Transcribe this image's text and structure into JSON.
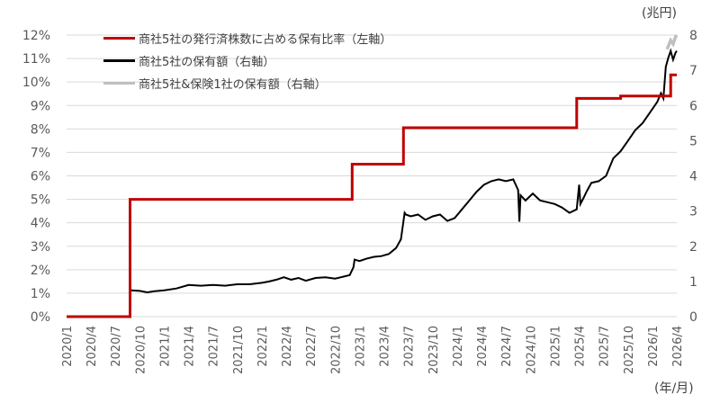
{
  "chart_data": {
    "type": "line",
    "title": "",
    "xlabel": "(年/月)",
    "ylabel_left": "",
    "ylabel_right": "(兆円)",
    "ylim_left": [
      0,
      12
    ],
    "ylim_right": [
      0,
      8
    ],
    "left_ticks": [
      "0%",
      "1%",
      "2%",
      "3%",
      "4%",
      "5%",
      "6%",
      "7%",
      "8%",
      "9%",
      "10%",
      "11%",
      "12%"
    ],
    "right_ticks": [
      "0",
      "1",
      "2",
      "3",
      "4",
      "5",
      "6",
      "7",
      "8"
    ],
    "x_ticks": [
      "2020/1",
      "2020/4",
      "2020/7",
      "2020/10",
      "2021/1",
      "2021/4",
      "2021/7",
      "2021/10",
      "2022/1",
      "2022/4",
      "2022/7",
      "2022/10",
      "2023/1",
      "2023/4",
      "2023/7",
      "2023/10",
      "2024/1",
      "2024/4",
      "2024/7",
      "2024/10",
      "2025/1",
      "2025/4",
      "2025/7",
      "2025/10",
      "2026/1",
      "2026/4"
    ],
    "grid": true,
    "legend_position": "top-left",
    "series": [
      {
        "name": "商社5社の発行済株数に占める保有比率（左軸）",
        "axis": "left",
        "color": "#C00000",
        "style": "step",
        "x_quarter_index": [
          0,
          2.6,
          2.6,
          11.7,
          11.7,
          13.8,
          13.8,
          20.9,
          20.9,
          22.7,
          22.7,
          24.75,
          24.75,
          25.0
        ],
        "values": [
          0,
          0,
          5.0,
          5.0,
          6.5,
          6.5,
          8.05,
          8.05,
          9.3,
          9.3,
          9.4,
          9.4,
          10.3,
          10.3
        ]
      },
      {
        "name": "商社5社の保有額（右軸）",
        "axis": "right",
        "color": "#000000",
        "style": "line",
        "x_quarter_index": [
          0,
          2.6,
          2.62,
          3.0,
          3.3,
          3.6,
          4.0,
          4.5,
          5.0,
          5.5,
          6.0,
          6.5,
          7.0,
          7.5,
          8.0,
          8.3,
          8.6,
          8.9,
          9.2,
          9.5,
          9.8,
          10.2,
          10.6,
          11.0,
          11.3,
          11.6,
          11.75,
          11.8,
          12.0,
          12.3,
          12.6,
          12.9,
          13.2,
          13.5,
          13.7,
          13.85,
          13.9,
          14.1,
          14.4,
          14.7,
          15.0,
          15.3,
          15.6,
          15.9,
          16.2,
          16.5,
          16.8,
          17.1,
          17.4,
          17.7,
          18.0,
          18.3,
          18.5,
          18.55,
          18.6,
          18.8,
          19.1,
          19.4,
          19.7,
          20.0,
          20.3,
          20.6,
          20.9,
          21.0,
          21.05,
          21.2,
          21.3,
          21.5,
          21.8,
          22.1,
          22.4,
          22.7,
          23.0,
          23.3,
          23.6,
          23.9,
          24.2,
          24.35,
          24.45,
          24.55,
          24.65,
          24.75,
          24.85,
          24.95,
          25.0
        ],
        "values": [
          0,
          0,
          0.75,
          0.73,
          0.69,
          0.72,
          0.75,
          0.8,
          0.9,
          0.88,
          0.9,
          0.88,
          0.92,
          0.92,
          0.96,
          1.0,
          1.05,
          1.12,
          1.05,
          1.1,
          1.02,
          1.1,
          1.12,
          1.08,
          1.13,
          1.18,
          1.4,
          1.62,
          1.58,
          1.65,
          1.7,
          1.72,
          1.78,
          1.95,
          2.2,
          2.95,
          2.9,
          2.85,
          2.9,
          2.75,
          2.85,
          2.9,
          2.72,
          2.8,
          3.05,
          3.3,
          3.55,
          3.75,
          3.85,
          3.9,
          3.85,
          3.9,
          3.6,
          2.7,
          3.45,
          3.3,
          3.5,
          3.3,
          3.25,
          3.2,
          3.1,
          2.95,
          3.05,
          3.75,
          3.2,
          3.4,
          3.55,
          3.8,
          3.85,
          4.0,
          4.5,
          4.7,
          5.0,
          5.3,
          5.5,
          5.8,
          6.1,
          6.35,
          6.2,
          7.1,
          7.35,
          7.55,
          7.3,
          7.5,
          7.55
        ]
      },
      {
        "name": "商社5社&保険1社の保有額（右軸）",
        "axis": "right",
        "color": "#BFBFBF",
        "style": "line",
        "x_quarter_index": [
          24.6,
          24.75,
          24.85,
          24.95,
          25.0
        ],
        "values": [
          7.6,
          7.85,
          7.75,
          7.95,
          8.0
        ]
      }
    ]
  },
  "legend": {
    "items": [
      {
        "label": "商社5社の発行済株数に占める保有比率（左軸）",
        "color": "#C00000"
      },
      {
        "label": "商社5社の保有額（右軸）",
        "color": "#000000"
      },
      {
        "label": "商社5社&保険1社の保有額（右軸）",
        "color": "#BFBFBF"
      }
    ]
  },
  "axes": {
    "right_unit": "(兆円)",
    "x_unit": "(年/月)"
  },
  "colors": {
    "grid": "#D9D9D9",
    "tick_text": "#595959"
  }
}
